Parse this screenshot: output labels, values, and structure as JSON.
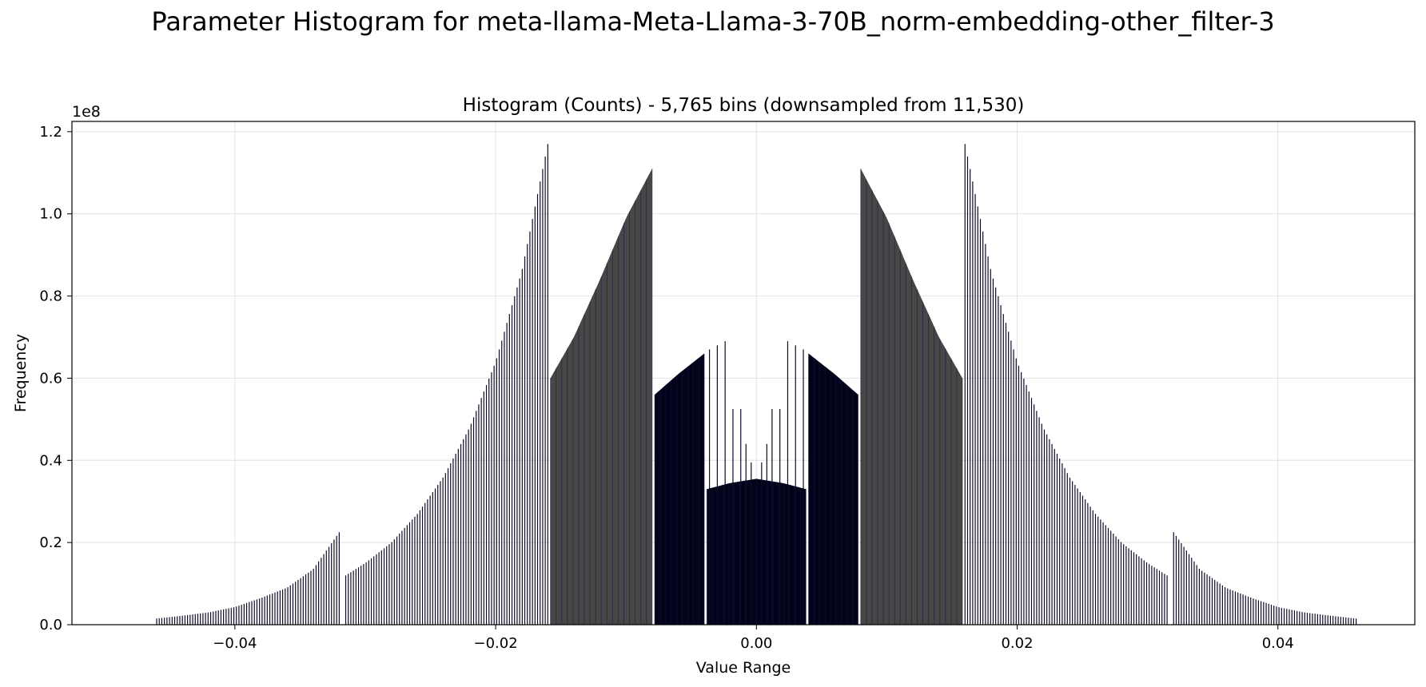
{
  "chart_data": {
    "type": "bar",
    "suptitle": "Parameter Histogram for meta-llama-Meta-Llama-3-70B_norm-embedding-other_filter-3",
    "title": "Histogram (Counts) - 5,765 bins (downsampled from 11,530)",
    "xlabel": "Value Range",
    "ylabel": "Frequency",
    "y_offset_label": "1e8",
    "xlim": [
      -0.0525,
      0.0505
    ],
    "ylim": [
      0.0,
      1.225
    ],
    "y_unit_multiplier": 100000000,
    "xticks": [
      -0.04,
      -0.02,
      0.0,
      0.02,
      0.04
    ],
    "xtick_labels": [
      "−0.04",
      "−0.02",
      "0.00",
      "0.02",
      "0.04"
    ],
    "yticks": [
      0.0,
      0.2,
      0.4,
      0.6,
      0.8,
      1.0,
      1.2
    ],
    "ytick_labels": [
      "0.0",
      "0.2",
      "0.4",
      "0.6",
      "0.8",
      "1.0",
      "1.2"
    ],
    "grid": true,
    "colors": {
      "bar": "#0b0b26",
      "bar_edge": "#1a1a3a",
      "dense_fill": "#474747",
      "center_fill": "#02021a"
    },
    "segments": [
      {
        "x": [
          -0.046,
          -0.044,
          -0.042,
          -0.04,
          -0.038,
          -0.036,
          -0.034,
          -0.032
        ],
        "y": [
          0.015,
          0.022,
          0.03,
          0.043,
          0.065,
          0.09,
          0.135,
          0.225
        ],
        "density": "sparse"
      },
      {
        "x": [
          -0.0315,
          -0.03,
          -0.028,
          -0.026,
          -0.024,
          -0.022,
          -0.02,
          -0.018,
          -0.016
        ],
        "y": [
          0.12,
          0.15,
          0.2,
          0.27,
          0.36,
          0.48,
          0.64,
          0.86,
          1.17
        ],
        "density": "sparse"
      },
      {
        "x": [
          -0.0158,
          -0.014,
          -0.012,
          -0.01,
          -0.008
        ],
        "y": [
          0.6,
          0.7,
          0.84,
          0.99,
          1.11
        ],
        "density": "dense"
      },
      {
        "x": [
          -0.0078,
          -0.006,
          -0.004
        ],
        "y": [
          0.56,
          0.61,
          0.66
        ],
        "density": "dense_center"
      },
      {
        "x": [
          -0.0038,
          -0.002,
          0.0,
          0.002,
          0.0038
        ],
        "y": [
          0.33,
          0.345,
          0.355,
          0.345,
          0.33
        ],
        "density": "dense_center"
      },
      {
        "x": [
          0.004,
          0.006,
          0.0078
        ],
        "y": [
          0.66,
          0.61,
          0.56
        ],
        "density": "dense_center"
      },
      {
        "x": [
          0.008,
          0.01,
          0.012,
          0.014,
          0.0158
        ],
        "y": [
          1.11,
          0.99,
          0.84,
          0.7,
          0.6
        ],
        "density": "dense"
      },
      {
        "x": [
          0.016,
          0.018,
          0.02,
          0.022,
          0.024,
          0.026,
          0.028,
          0.03,
          0.0315
        ],
        "y": [
          1.17,
          0.86,
          0.64,
          0.48,
          0.36,
          0.27,
          0.2,
          0.15,
          0.12
        ],
        "density": "sparse"
      },
      {
        "x": [
          0.032,
          0.034,
          0.036,
          0.038,
          0.04,
          0.042,
          0.044,
          0.046
        ],
        "y": [
          0.225,
          0.135,
          0.09,
          0.065,
          0.043,
          0.03,
          0.022,
          0.015
        ],
        "density": "sparse"
      }
    ],
    "spikes": [
      {
        "x": -0.0036,
        "y": 0.67
      },
      {
        "x": -0.003,
        "y": 0.68
      },
      {
        "x": -0.0024,
        "y": 0.69
      },
      {
        "x": -0.0018,
        "y": 0.525
      },
      {
        "x": -0.0012,
        "y": 0.525
      },
      {
        "x": -0.0008,
        "y": 0.44
      },
      {
        "x": -0.0004,
        "y": 0.395
      },
      {
        "x": 0.0004,
        "y": 0.395
      },
      {
        "x": 0.0008,
        "y": 0.44
      },
      {
        "x": 0.0012,
        "y": 0.525
      },
      {
        "x": 0.0018,
        "y": 0.525
      },
      {
        "x": 0.0024,
        "y": 0.69
      },
      {
        "x": 0.003,
        "y": 0.68
      },
      {
        "x": 0.0036,
        "y": 0.67
      }
    ]
  }
}
